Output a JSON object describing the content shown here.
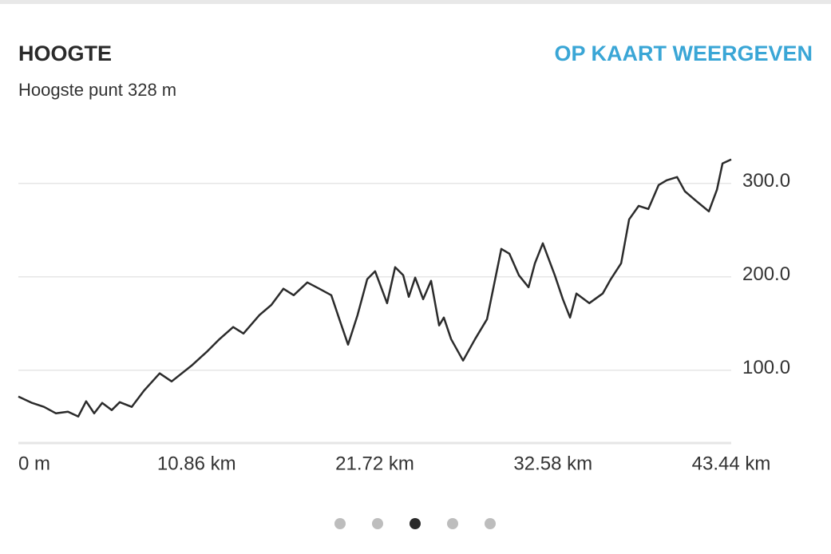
{
  "header": {
    "title": "HOOGTE",
    "link": "OP KAART WEERGEVEN",
    "subtitle": "Hoogste punt 328 m"
  },
  "chart_data": {
    "type": "line",
    "color": "#2b2b2b",
    "grid": true,
    "xlim": [
      0,
      43.44
    ],
    "xticks": [
      0,
      {
        "value": 10.86,
        "label": "10.86 km"
      },
      {
        "value": 21.72,
        "label": "21.72 km"
      },
      {
        "value": 32.58,
        "label": "32.58 km"
      },
      {
        "value": 43.44,
        "label": "43.44 km"
      }
    ],
    "xtick_first_label": "0 m",
    "ylim": [
      22,
      340
    ],
    "yticks": [
      {
        "value": 100,
        "label": "100.0"
      },
      {
        "value": 200,
        "label": "200.0"
      },
      {
        "value": 300,
        "label": "300.0"
      }
    ],
    "x": [
      0,
      0.83,
      1.56,
      2.29,
      3.02,
      3.65,
      4.13,
      4.62,
      5.11,
      5.69,
      6.18,
      6.91,
      7.64,
      8.61,
      9.34,
      10.56,
      11.53,
      12.26,
      13.09,
      13.72,
      14.69,
      15.42,
      16.15,
      16.78,
      17.61,
      18.34,
      19.07,
      19.56,
      20.09,
      20.67,
      21.26,
      21.74,
      22.47,
      22.96,
      23.45,
      23.79,
      24.18,
      24.67,
      25.15,
      25.64,
      25.93,
      26.37,
      27.1,
      27.83,
      28.56,
      29.43,
      29.92,
      30.5,
      31.09,
      31.48,
      31.96,
      32.69,
      33.18,
      33.62,
      34.01,
      34.79,
      35.61,
      36.1,
      36.73,
      37.22,
      37.8,
      38.39,
      39.02,
      39.51,
      40.14,
      40.62,
      41.31,
      42.08,
      42.57,
      42.91,
      43.44
    ],
    "values": [
      71.8,
      65,
      60.7,
      53.8,
      55.6,
      50.4,
      66.7,
      53.8,
      65,
      57.3,
      65.8,
      60.7,
      77.8,
      96.6,
      88,
      105,
      120.5,
      133.3,
      146.2,
      139.3,
      159,
      170,
      187.2,
      180.3,
      194,
      187.2,
      180.3,
      154.7,
      127.4,
      159,
      197.4,
      206,
      171.8,
      210.3,
      201.7,
      178.6,
      199.1,
      176,
      195.7,
      147.9,
      156.4,
      133.3,
      110.3,
      133.3,
      154.7,
      229.9,
      224.8,
      201.7,
      188.9,
      214.5,
      235.9,
      201.7,
      176,
      156.4,
      182.1,
      171.8,
      182.1,
      197.4,
      214.5,
      261.5,
      276,
      272.6,
      298.3,
      303.4,
      306.8,
      291.5,
      281.2,
      270.1,
      293.2,
      321.4,
      325.6
    ]
  }
}
